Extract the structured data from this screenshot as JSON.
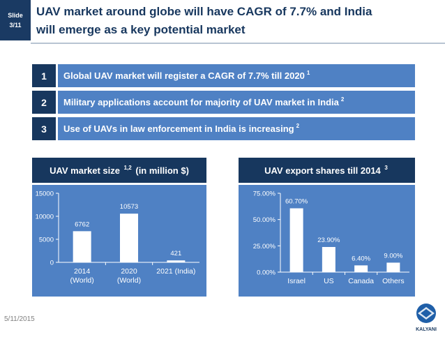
{
  "slide": {
    "label": "Slide",
    "number": "3/11"
  },
  "title": {
    "line1": "UAV market around globe will have CAGR of 7.7% and India",
    "line2": "will emerge as a key potential market"
  },
  "points": [
    {
      "num": "1",
      "text": "Global UAV market will register a CAGR of 7.7% till 2020",
      "ref": "1"
    },
    {
      "num": "2",
      "text": "Military applications account for majority of UAV market in India",
      "ref": "2"
    },
    {
      "num": "3",
      "text": "Use of UAVs in law enforcement in India is increasing",
      "ref": "2"
    }
  ],
  "left_panel": {
    "title": "UAV market size",
    "ref": "1,2",
    "title_suffix": "(in million $)"
  },
  "right_panel": {
    "title": "UAV export shares till 2014",
    "ref": "3"
  },
  "chart_data": [
    {
      "type": "bar",
      "categories": [
        [
          "2014",
          "(World)"
        ],
        [
          "2020",
          "(World)"
        ],
        [
          "2021 (India)"
        ]
      ],
      "values": [
        6762,
        10573,
        421
      ],
      "data_labels": [
        "6762",
        "10573",
        "421"
      ],
      "ylim": [
        0,
        15000
      ],
      "yticks": [
        0,
        5000,
        10000,
        15000
      ],
      "ytick_labels": [
        "0",
        "5000",
        "10000",
        "15000"
      ],
      "title": "UAV market size 1,2 (in million $)",
      "xlabel": "",
      "ylabel": "",
      "grid": false,
      "legend": "none"
    },
    {
      "type": "bar",
      "categories": [
        [
          "Israel"
        ],
        [
          "US"
        ],
        [
          "Canada"
        ],
        [
          "Others"
        ]
      ],
      "values": [
        60.7,
        23.9,
        6.4,
        9.0
      ],
      "data_labels": [
        "60.70%",
        "23.90%",
        "6.40%",
        "9.00%"
      ],
      "ylim": [
        0,
        75
      ],
      "yticks": [
        0,
        25,
        50,
        75
      ],
      "ytick_labels": [
        "0.00%",
        "25.00%",
        "50.00%",
        "75.00%"
      ],
      "title": "UAV export shares till 2014 3",
      "xlabel": "",
      "ylabel": "",
      "grid": false,
      "legend": "none"
    }
  ],
  "footer": {
    "date": "5/11/2015"
  },
  "logo": {
    "text": "KALYANI"
  },
  "colors": {
    "navy": "#17375e",
    "blue": "#4f81c4",
    "bar": "#ffffff"
  }
}
